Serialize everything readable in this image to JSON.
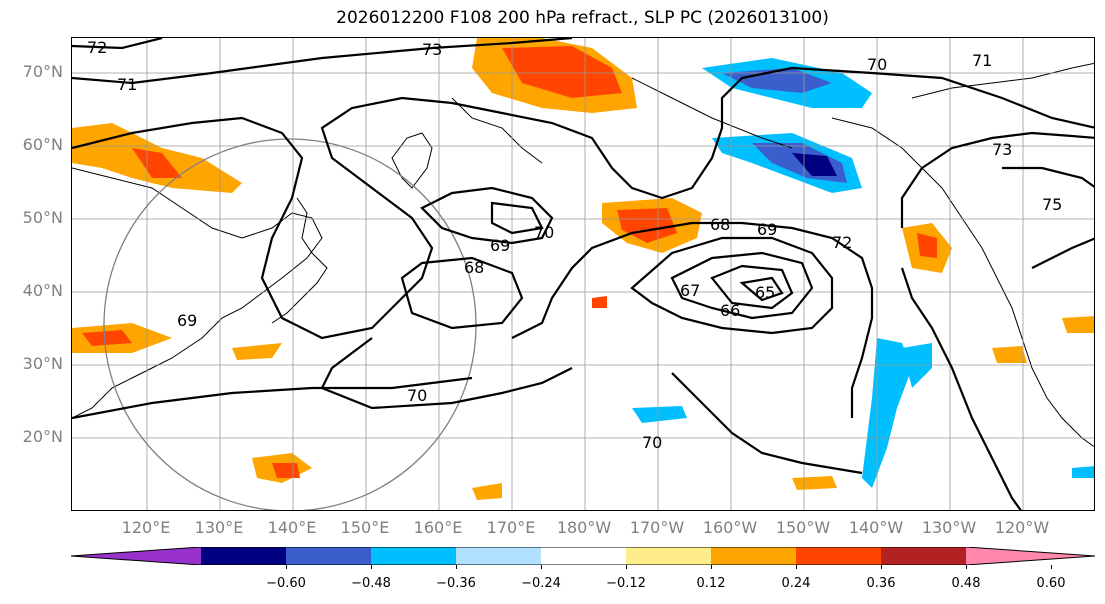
{
  "title": "2026012200 F108 200 hPa refract., SLP PC (2026013100)",
  "lat_labels": [
    "70°N",
    "60°N",
    "50°N",
    "40°N",
    "30°N",
    "20°N"
  ],
  "lon_labels": [
    "120°E",
    "130°E",
    "140°E",
    "150°E",
    "160°E",
    "170°E",
    "180°W",
    "170°W",
    "160°W",
    "150°W",
    "140°W",
    "130°W",
    "120°W"
  ],
  "contour_labels": [
    "72",
    "73",
    "71",
    "70",
    "71",
    "73",
    "75",
    "70",
    "69",
    "68",
    "69",
    "68",
    "72",
    "67",
    "66",
    "65",
    "70",
    "70",
    "69"
  ],
  "colorbar": {
    "ticks": [
      "−0.60",
      "−0.48",
      "−0.36",
      "−0.24",
      "−0.12",
      "0.12",
      "0.24",
      "0.36",
      "0.48",
      "0.60"
    ],
    "colors": [
      "#9932cc",
      "#000080",
      "#3a5fcd",
      "#00bfff",
      "#b0e2ff",
      "#ffffff",
      "#ffec8b",
      "#ffa500",
      "#ff4500",
      "#b22222",
      "#ff88aa"
    ]
  }
}
